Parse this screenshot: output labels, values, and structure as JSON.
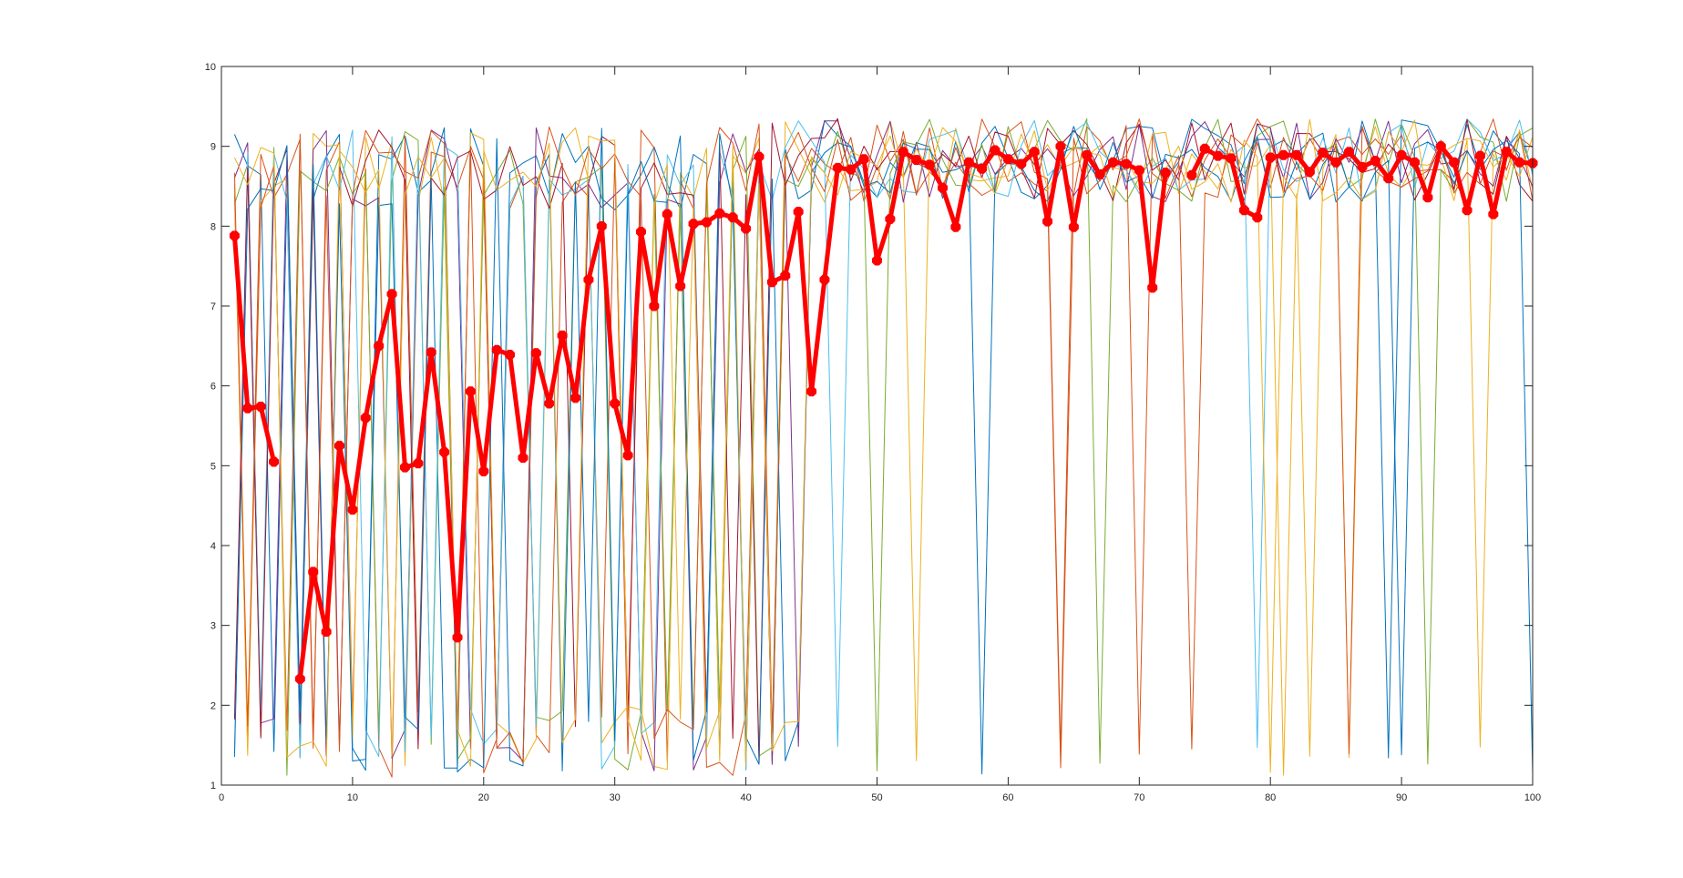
{
  "chart_data": {
    "type": "line",
    "title": "",
    "xlabel": "",
    "ylabel": "",
    "xlim": [
      0,
      100
    ],
    "ylim": [
      1,
      10
    ],
    "grid": false,
    "legend": "none",
    "x_ticks": [
      0,
      10,
      20,
      30,
      40,
      50,
      60,
      70,
      80,
      90,
      100
    ],
    "y_ticks": [
      1,
      2,
      3,
      4,
      5,
      6,
      7,
      8,
      9,
      10
    ],
    "x_tick_labels": [
      "0",
      "10",
      "20",
      "30",
      "40",
      "50",
      "60",
      "70",
      "80",
      "90",
      "100"
    ],
    "y_tick_labels": [
      "1",
      "2",
      "3",
      "4",
      "5",
      "6",
      "7",
      "8",
      "9",
      "10"
    ],
    "background_series_colors": [
      "#0072BD",
      "#D95319",
      "#EDB120",
      "#7E2F8E",
      "#77AC30",
      "#4DBEEE",
      "#A2142F"
    ],
    "mean_series": {
      "color": "#FF0000",
      "x": [
        1,
        2,
        3,
        4,
        6,
        7,
        8,
        9,
        10,
        11,
        12,
        13,
        14,
        15,
        16,
        17,
        18,
        19,
        20,
        21,
        22,
        23,
        24,
        25,
        26,
        27,
        28,
        29,
        30,
        31,
        32,
        33,
        34,
        35,
        36,
        37,
        38,
        39,
        40,
        41,
        42,
        43,
        44,
        45,
        46,
        47,
        48,
        49,
        50,
        51,
        52,
        53,
        54,
        55,
        56,
        57,
        58,
        59,
        60,
        61,
        62,
        63,
        64,
        65,
        66,
        67,
        68,
        69,
        70,
        71,
        72,
        74,
        75,
        76,
        77,
        78,
        79,
        80,
        81,
        82,
        83,
        84,
        85,
        86,
        87,
        88,
        89,
        90,
        91,
        92,
        93,
        94,
        95,
        96,
        97,
        98,
        99,
        100
      ],
      "values": [
        7.88,
        5.72,
        5.74,
        5.05,
        2.33,
        3.67,
        2.92,
        5.25,
        4.45,
        5.6,
        6.5,
        7.15,
        4.98,
        5.03,
        6.42,
        5.17,
        2.85,
        5.93,
        4.93,
        6.45,
        6.39,
        5.1,
        6.41,
        5.78,
        6.63,
        5.85,
        7.33,
        8.0,
        5.78,
        5.13,
        7.93,
        7.0,
        8.15,
        7.25,
        8.03,
        8.05,
        8.16,
        8.11,
        7.97,
        8.87,
        7.3,
        7.38,
        8.18,
        5.93,
        7.33,
        8.73,
        8.71,
        8.84,
        7.57,
        8.09,
        8.93,
        8.83,
        8.77,
        8.48,
        7.99,
        8.8,
        8.72,
        8.95,
        8.84,
        8.78,
        8.93,
        8.06,
        9.0,
        7.99,
        8.89,
        8.65,
        8.8,
        8.78,
        8.7,
        7.23,
        8.67,
        8.64,
        8.97,
        8.88,
        8.85,
        8.2,
        8.11,
        8.86,
        8.89,
        8.89,
        8.68,
        8.92,
        8.8,
        8.93,
        8.74,
        8.82,
        8.6,
        8.89,
        8.8,
        8.36,
        9.0,
        8.8,
        8.2,
        8.88,
        8.15,
        8.93,
        8.8,
        8.79
      ]
    }
  }
}
